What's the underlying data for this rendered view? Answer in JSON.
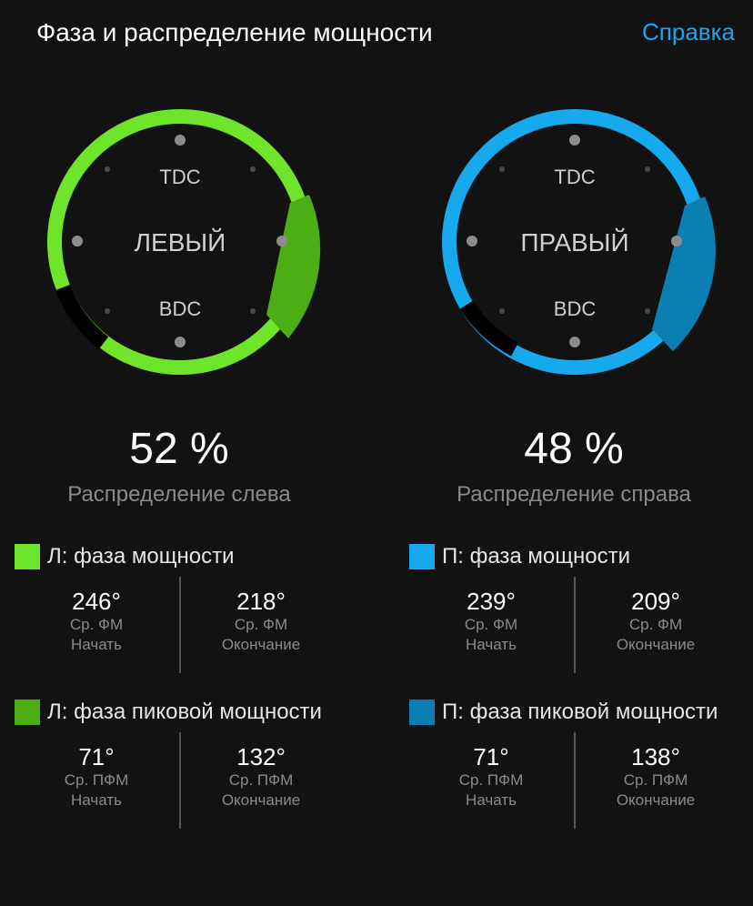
{
  "header": {
    "title": "Фаза и распределение мощности",
    "help_label": "Справка"
  },
  "colors": {
    "left_arc": "#6ee52a",
    "left_peak": "#4cae14",
    "right_arc": "#16a9ee",
    "right_peak": "#0b7fb1",
    "gap": "#000000",
    "dot": "#8c8c8c",
    "accent": "#1aa6e8"
  },
  "left": {
    "dial_label": "ЛЕВЫЙ",
    "tdc": "TDC",
    "bdc": "BDC",
    "percent": "52 %",
    "percent_label": "Распределение слева",
    "power_phase": {
      "title": "Л: фаза мощности",
      "start": {
        "value": "246°",
        "label1": "Ср. ФМ",
        "label2": "Начать"
      },
      "end": {
        "value": "218°",
        "label1": "Ср. ФМ",
        "label2": "Окончание"
      }
    },
    "peak_phase": {
      "title": "Л: фаза пиковой мощности",
      "start": {
        "value": "71°",
        "label1": "Ср. ПФМ",
        "label2": "Начать"
      },
      "end": {
        "value": "132°",
        "label1": "Ср. ПФМ",
        "label2": "Окончание"
      }
    }
  },
  "right": {
    "dial_label": "ПРАВЫЙ",
    "tdc": "TDC",
    "bdc": "BDC",
    "percent": "48 %",
    "percent_label": "Распределение справа",
    "power_phase": {
      "title": "П: фаза мощности",
      "start": {
        "value": "239°",
        "label1": "Ср. ФМ",
        "label2": "Начать"
      },
      "end": {
        "value": "209°",
        "label1": "Ср. ФМ",
        "label2": "Окончание"
      }
    },
    "peak_phase": {
      "title": "П: фаза пиковой мощности",
      "start": {
        "value": "71°",
        "label1": "Ср. ПФМ",
        "label2": "Начать"
      },
      "end": {
        "value": "138°",
        "label1": "Ср. ПФМ",
        "label2": "Окончание"
      }
    }
  }
}
